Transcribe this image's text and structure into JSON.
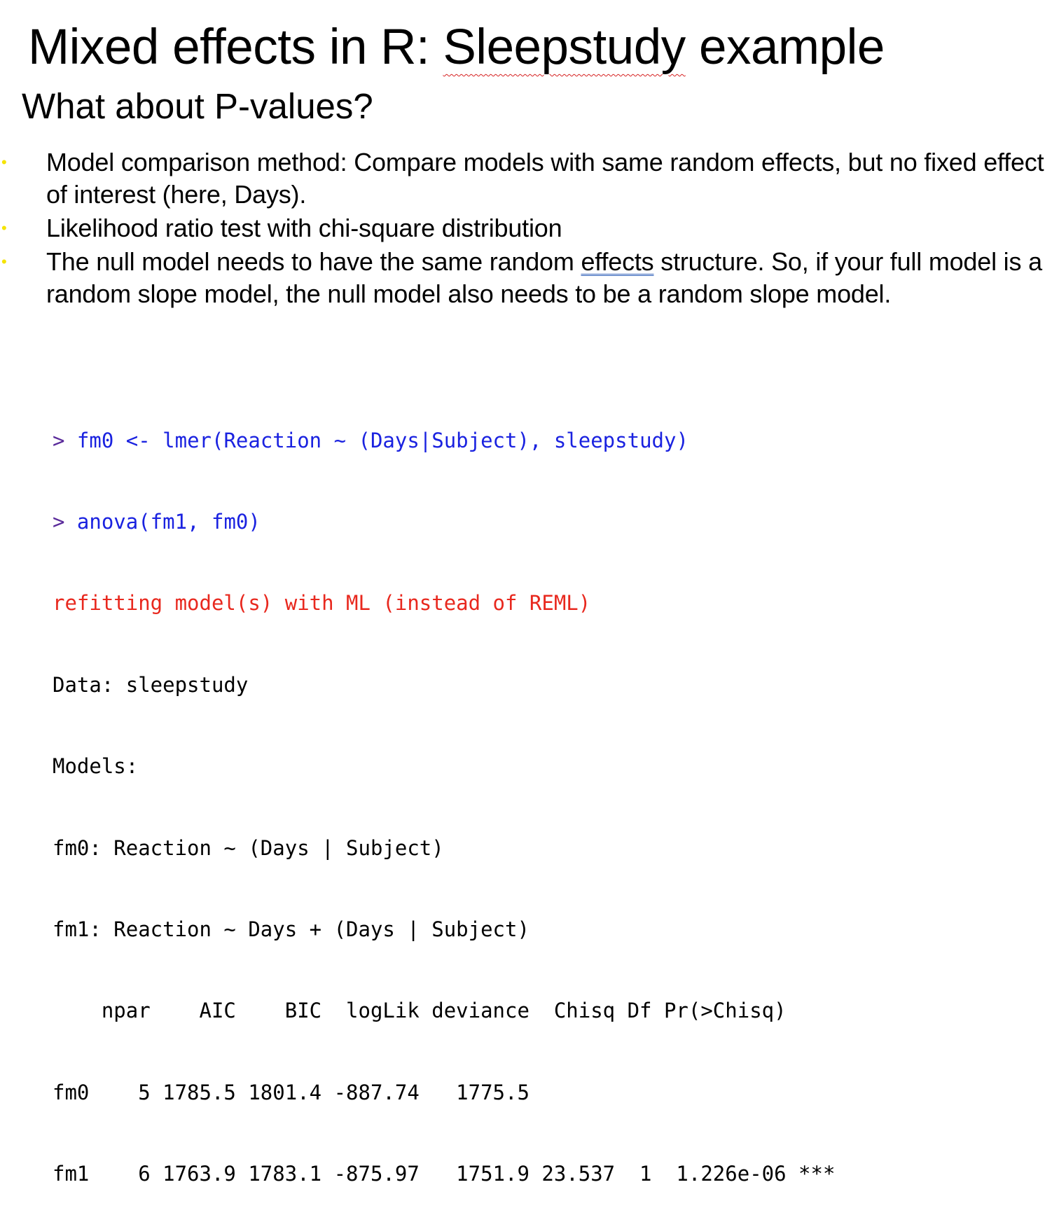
{
  "slide": {
    "title_before": "Mixed effects in R: ",
    "title_squiggle": "Sleepstudy",
    "title_after": " example",
    "subtitle": "What about P-values?"
  },
  "bullets": [
    {
      "before": "Model comparison method: Compare models with same random effects, but no fixed effect of interest (here, Days).",
      "underlined": "",
      "after": ""
    },
    {
      "before": "Likelihood ratio test with chi-square distribution",
      "underlined": "",
      "after": ""
    },
    {
      "before": "The null model needs to have the same random ",
      "underlined": "effects",
      "after": " structure. So, if your full model is a random slope model, the null model also needs to be a random slope model."
    }
  ],
  "bullet_symbol": "•",
  "colors": {
    "bullet": "#f5e400",
    "code_command": "#1a22e0",
    "code_prompt": "#5a2a9a",
    "code_message": "#e8281e",
    "squiggle": "#d62020"
  },
  "code": {
    "prompt": ">",
    "commands": [
      " fm0 <- lmer(Reaction ~ (Days|Subject), sleepstudy)",
      " anova(fm1, fm0)"
    ],
    "message": "refitting model(s) with ML (instead of REML)",
    "output_lines": [
      "Data: sleepstudy",
      "Models:",
      "fm0: Reaction ~ (Days | Subject)",
      "fm1: Reaction ~ Days + (Days | Subject)",
      "    npar    AIC    BIC  logLik deviance  Chisq Df Pr(>Chisq)",
      "fm0    5 1785.5 1801.4 -887.74   1775.5",
      "fm1    6 1763.9 1783.1 -875.97   1751.9 23.537  1  1.226e-06 ***"
    ]
  }
}
